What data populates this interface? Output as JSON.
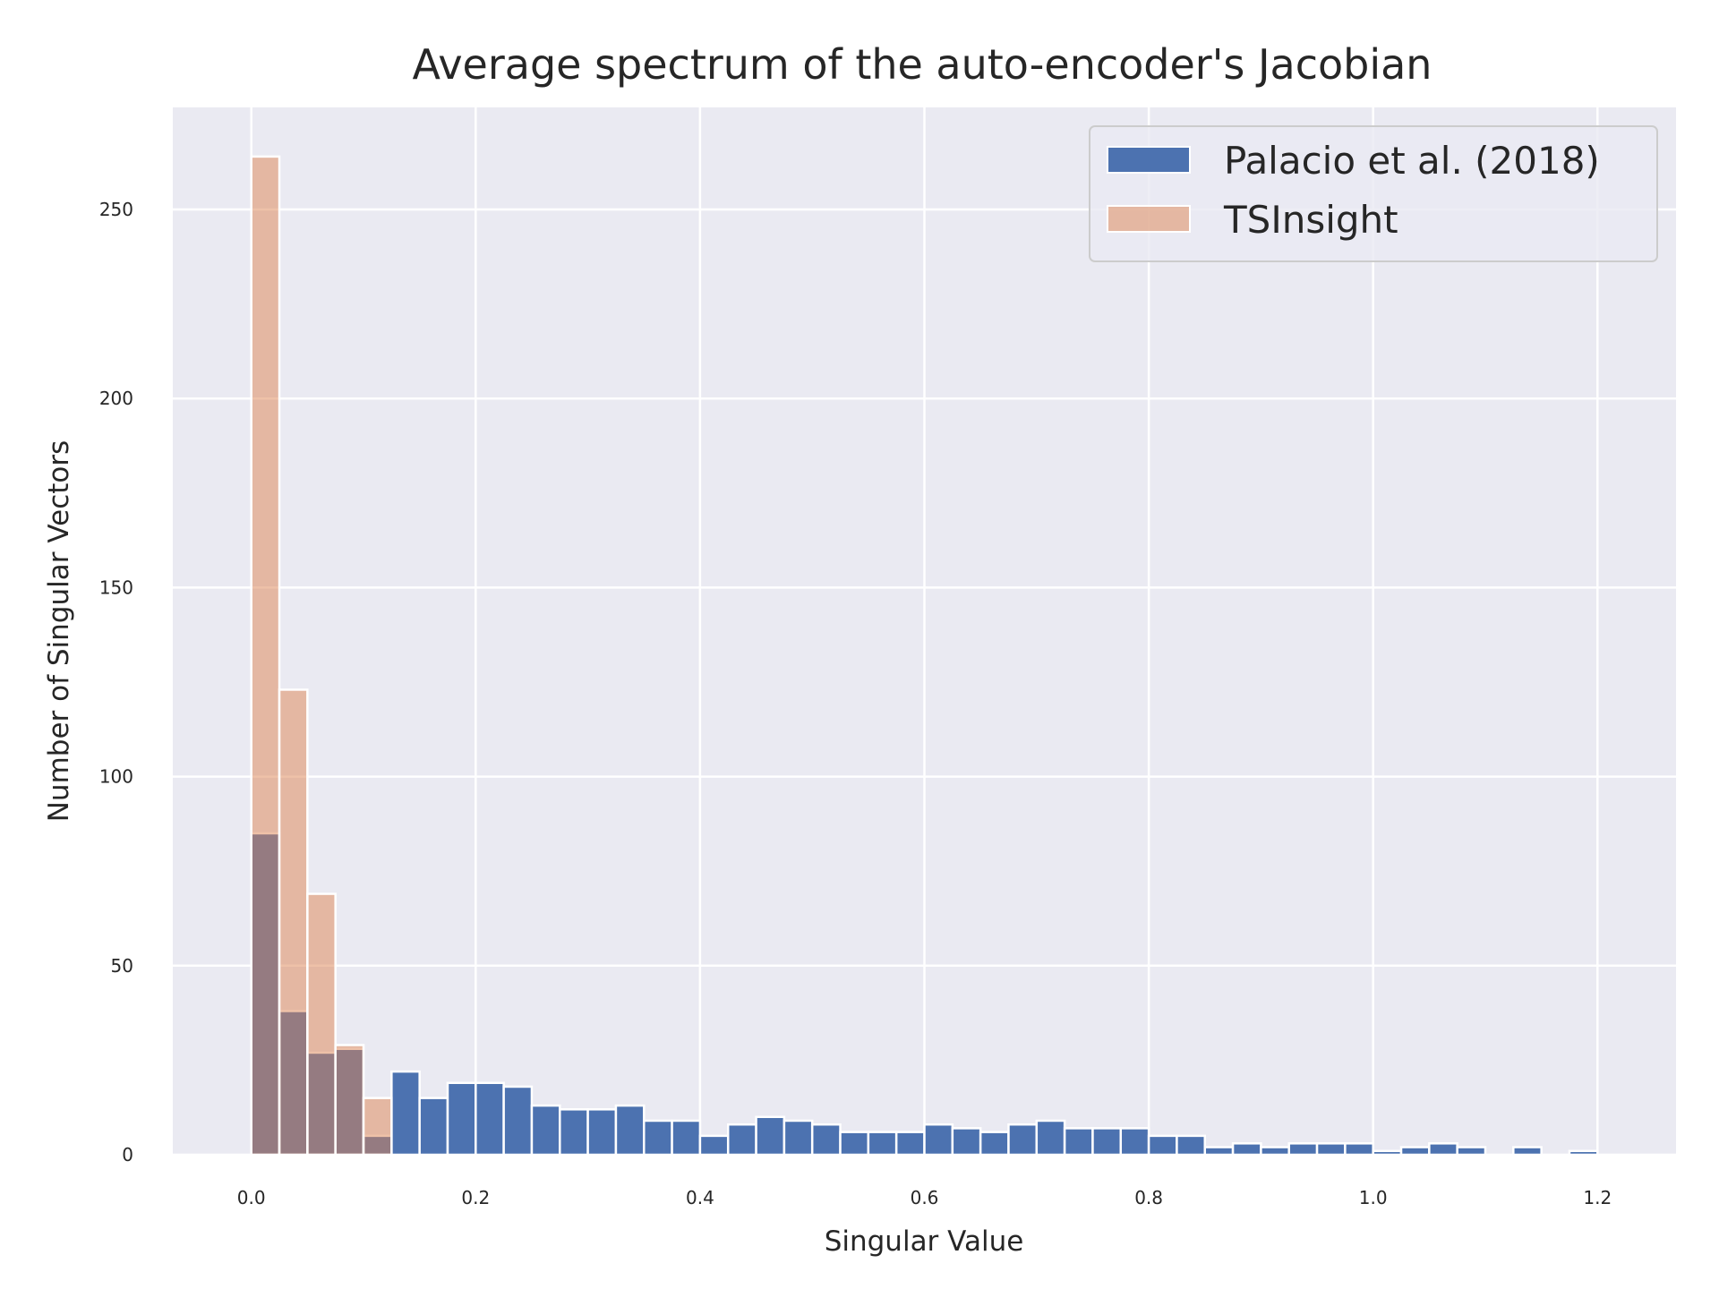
{
  "chart_data": {
    "type": "bar",
    "title": "Average spectrum of the auto-encoder's Jacobian",
    "xlabel": "Singular Value",
    "ylabel": "Number of Singular Vectors",
    "xlim": [
      -0.07,
      1.27
    ],
    "ylim": [
      0,
      277
    ],
    "xticks": [
      0.0,
      0.2,
      0.4,
      0.6,
      0.8,
      1.0,
      1.2
    ],
    "xtick_labels": [
      "0.0",
      "0.2",
      "0.4",
      "0.6",
      "0.8",
      "1.0",
      "1.2"
    ],
    "yticks": [
      0,
      50,
      100,
      150,
      200,
      250
    ],
    "ytick_labels": [
      "0",
      "50",
      "100",
      "150",
      "200",
      "250"
    ],
    "grid": true,
    "legend_position": "top-right",
    "bin_width": 0.025,
    "series": [
      {
        "name": "Palacio et al. (2018)",
        "color": "#4c72b0",
        "bin_start": 0.0,
        "values": [
          85,
          38,
          27,
          28,
          5,
          22,
          15,
          19,
          19,
          18,
          13,
          12,
          12,
          13,
          9,
          9,
          5,
          8,
          10,
          9,
          8,
          6,
          6,
          6,
          8,
          7,
          6,
          8,
          9,
          7,
          7,
          7,
          5,
          5,
          2,
          3,
          2,
          3,
          3,
          3,
          1,
          2,
          3,
          2,
          0,
          2,
          0,
          1
        ]
      },
      {
        "name": "TSInsight",
        "color": "#dd8452",
        "alpha": 0.5,
        "bin_start": 0.0,
        "values": [
          264,
          123,
          69,
          29,
          15
        ]
      }
    ]
  }
}
